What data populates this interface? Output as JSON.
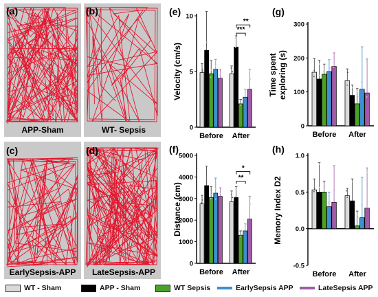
{
  "colors": {
    "track_bg": "#c9c9c9",
    "track_line": "#e2182f",
    "wt_sham": "#d9d9d9",
    "app_sham": "#000000",
    "wt_sepsis": "#4aa329",
    "early_sepsis_app": "#3d8fcf",
    "late_sepsis_app": "#a05aa8"
  },
  "tracks": [
    {
      "letter": "(a)",
      "caption": "APP-Sham"
    },
    {
      "letter": "(b)",
      "caption": "WT- Sepsis"
    },
    {
      "letter": "(c)",
      "caption": "EarlySepsis-APP"
    },
    {
      "letter": "(d)",
      "caption": "LateSepsis-APP"
    }
  ],
  "legend": [
    "WT - Sham",
    "APP - Sham",
    "WT Sepsis",
    "EarlySepsis APP",
    "LateSepsis APP"
  ],
  "chart_data": [
    {
      "panel": "(e)",
      "type": "bar",
      "ylabel": "Velocity (cm/s)",
      "categories": [
        "Before",
        "After"
      ],
      "ylim": [
        0,
        10
      ],
      "yticks": [
        0,
        5,
        10
      ],
      "series": [
        {
          "name": "WT - Sham",
          "values": [
            4.9,
            4.8
          ],
          "err": [
            0.8,
            0.7
          ]
        },
        {
          "name": "APP - Sham",
          "values": [
            6.9,
            7.2
          ],
          "err": [
            3.5,
            1.0
          ]
        },
        {
          "name": "WT Sepsis",
          "values": [
            4.8,
            2.1
          ],
          "err": [
            1.2,
            0.4
          ]
        },
        {
          "name": "EarlySepsis APP",
          "values": [
            5.2,
            2.7
          ],
          "err": [
            0.9,
            0.7
          ]
        },
        {
          "name": "LateSepsis APP",
          "values": [
            4.4,
            3.4
          ],
          "err": [
            0.8,
            1.8
          ]
        }
      ],
      "annotations": [
        "**",
        "***"
      ]
    },
    {
      "panel": "(g)",
      "type": "bar",
      "ylabel": "Time spent exploring (s)",
      "categories": [
        "Before",
        "After"
      ],
      "ylim": [
        0,
        300
      ],
      "yticks": [
        0,
        100,
        200,
        300
      ],
      "series": [
        {
          "name": "WT - Sham",
          "values": [
            158,
            133
          ],
          "err": [
            40,
            35
          ]
        },
        {
          "name": "APP - Sham",
          "values": [
            138,
            90
          ],
          "err": [
            55,
            30
          ]
        },
        {
          "name": "WT Sepsis",
          "values": [
            152,
            65
          ],
          "err": [
            30,
            45
          ]
        },
        {
          "name": "EarlySepsis APP",
          "values": [
            160,
            108
          ],
          "err": [
            35,
            125
          ]
        },
        {
          "name": "LateSepsis APP",
          "values": [
            175,
            97
          ],
          "err": [
            40,
            100
          ]
        }
      ],
      "annotations": []
    },
    {
      "panel": "(f)",
      "type": "bar",
      "ylabel": "Distance (cm)",
      "categories": [
        "Before",
        "After"
      ],
      "ylim": [
        0,
        5000
      ],
      "yticks": [
        0,
        1000,
        2000,
        3000,
        4000,
        5000
      ],
      "series": [
        {
          "name": "WT - Sham",
          "values": [
            2750,
            2850
          ],
          "err": [
            400,
            500
          ]
        },
        {
          "name": "APP - Sham",
          "values": [
            3600,
            3050
          ],
          "err": [
            900,
            500
          ]
        },
        {
          "name": "WT Sepsis",
          "values": [
            3050,
            1300
          ],
          "err": [
            500,
            200
          ]
        },
        {
          "name": "EarlySepsis APP",
          "values": [
            3250,
            1500
          ],
          "err": [
            700,
            350
          ]
        },
        {
          "name": "LateSepsis APP",
          "values": [
            3100,
            2050
          ],
          "err": [
            400,
            1050
          ]
        }
      ],
      "annotations": [
        "*",
        "**"
      ]
    },
    {
      "panel": "(h)",
      "type": "bar",
      "ylabel": "Memory Index D2",
      "categories": [
        "Before",
        "After"
      ],
      "ylim": [
        -0.5,
        1.0
      ],
      "yticks": [
        -0.5,
        0.0,
        0.5,
        1.0
      ],
      "series": [
        {
          "name": "WT - Sham",
          "values": [
            0.53,
            0.45
          ],
          "err": [
            0.15,
            0.1
          ]
        },
        {
          "name": "APP - Sham",
          "values": [
            0.5,
            0.38
          ],
          "err": [
            0.4,
            0.3
          ]
        },
        {
          "name": "WT Sepsis",
          "values": [
            0.5,
            0.04
          ],
          "err": [
            0.15,
            0.2
          ]
        },
        {
          "name": "EarlySepsis APP",
          "values": [
            0.3,
            0.15
          ],
          "err": [
            0.2,
            0.55
          ]
        },
        {
          "name": "LateSepsis APP",
          "values": [
            0.36,
            0.28
          ],
          "err": [
            0.5,
            0.55
          ]
        }
      ],
      "annotations": []
    }
  ]
}
